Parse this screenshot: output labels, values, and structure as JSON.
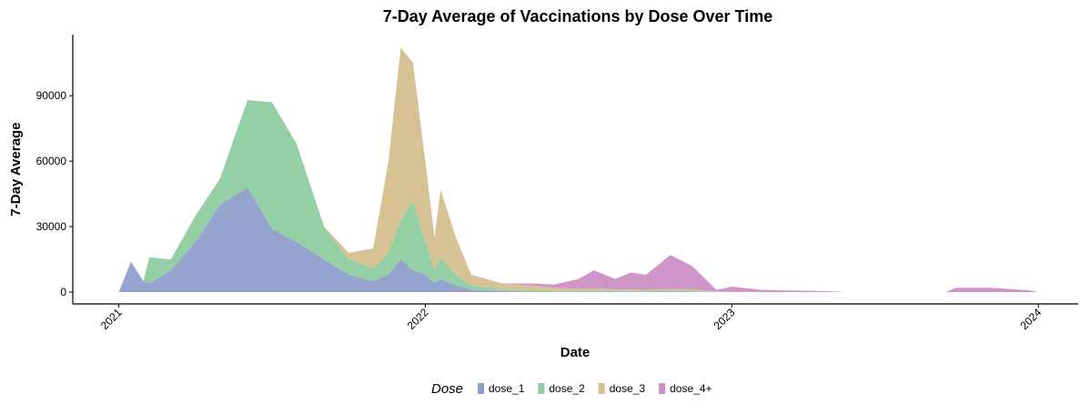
{
  "chart_data": {
    "type": "stacked-area",
    "title": "7-Day Average of Vaccinations by Dose Over Time",
    "x_label": "Date",
    "y_label": "7-Day Average",
    "legend_title": "Dose",
    "legend_position": "bottom",
    "x": [
      2021.0,
      2021.04,
      2021.08,
      2021.1,
      2021.17,
      2021.25,
      2021.33,
      2021.42,
      2021.5,
      2021.58,
      2021.67,
      2021.75,
      2021.83,
      2021.88,
      2021.92,
      2021.96,
      2022.0,
      2022.03,
      2022.05,
      2022.1,
      2022.15,
      2022.25,
      2022.35,
      2022.42,
      2022.5,
      2022.55,
      2022.62,
      2022.67,
      2022.72,
      2022.8,
      2022.87,
      2022.95,
      2023.0,
      2023.1,
      2023.3,
      2023.38,
      2023.7,
      2023.73,
      2023.85,
      2023.97,
      2024.0
    ],
    "series": [
      {
        "name": "dose_1",
        "color": "#8e9fcb",
        "values": [
          0,
          14000,
          5000,
          4000,
          10000,
          23000,
          40000,
          48000,
          29000,
          23000,
          15000,
          8000,
          5000,
          8000,
          15000,
          10000,
          8000,
          4000,
          6000,
          3000,
          1000,
          500,
          300,
          200,
          200,
          300,
          200,
          200,
          200,
          300,
          200,
          0,
          0,
          0,
          0,
          0,
          0,
          0,
          0,
          0,
          0
        ]
      },
      {
        "name": "dose_2",
        "color": "#8fcc9f",
        "values": [
          0,
          0,
          0,
          12000,
          5000,
          12000,
          12000,
          40000,
          58000,
          45000,
          15000,
          7000,
          6000,
          10000,
          18000,
          32000,
          15000,
          6000,
          10000,
          5000,
          2000,
          800,
          500,
          400,
          400,
          500,
          400,
          400,
          300,
          500,
          400,
          100,
          0,
          0,
          0,
          0,
          0,
          0,
          0,
          0,
          0
        ]
      },
      {
        "name": "dose_3",
        "color": "#d4bf8e",
        "values": [
          0,
          0,
          0,
          0,
          0,
          0,
          0,
          0,
          0,
          0,
          0,
          3000,
          9000,
          42000,
          79000,
          63000,
          37000,
          15000,
          31000,
          17000,
          5000,
          2700,
          2200,
          1400,
          1000,
          1000,
          600,
          600,
          500,
          800,
          600,
          200,
          100,
          0,
          0,
          0,
          0,
          0,
          0,
          0,
          0
        ]
      },
      {
        "name": "dose_4+",
        "color": "#cc8fc6",
        "values": [
          0,
          0,
          0,
          0,
          0,
          0,
          0,
          0,
          0,
          0,
          0,
          0,
          0,
          0,
          0,
          0,
          0,
          0,
          0,
          0,
          0,
          0,
          1000,
          1500,
          4400,
          8200,
          4800,
          7800,
          7000,
          15400,
          10800,
          700,
          2400,
          1000,
          500,
          0,
          0,
          2000,
          2000,
          800,
          0
        ]
      }
    ],
    "xlim": [
      2020.85,
      2024.13
    ],
    "xticks": [
      2021,
      2022,
      2023,
      2024
    ],
    "ylim": [
      -5400,
      118000
    ],
    "yticks": [
      0,
      30000,
      60000,
      90000
    ]
  }
}
